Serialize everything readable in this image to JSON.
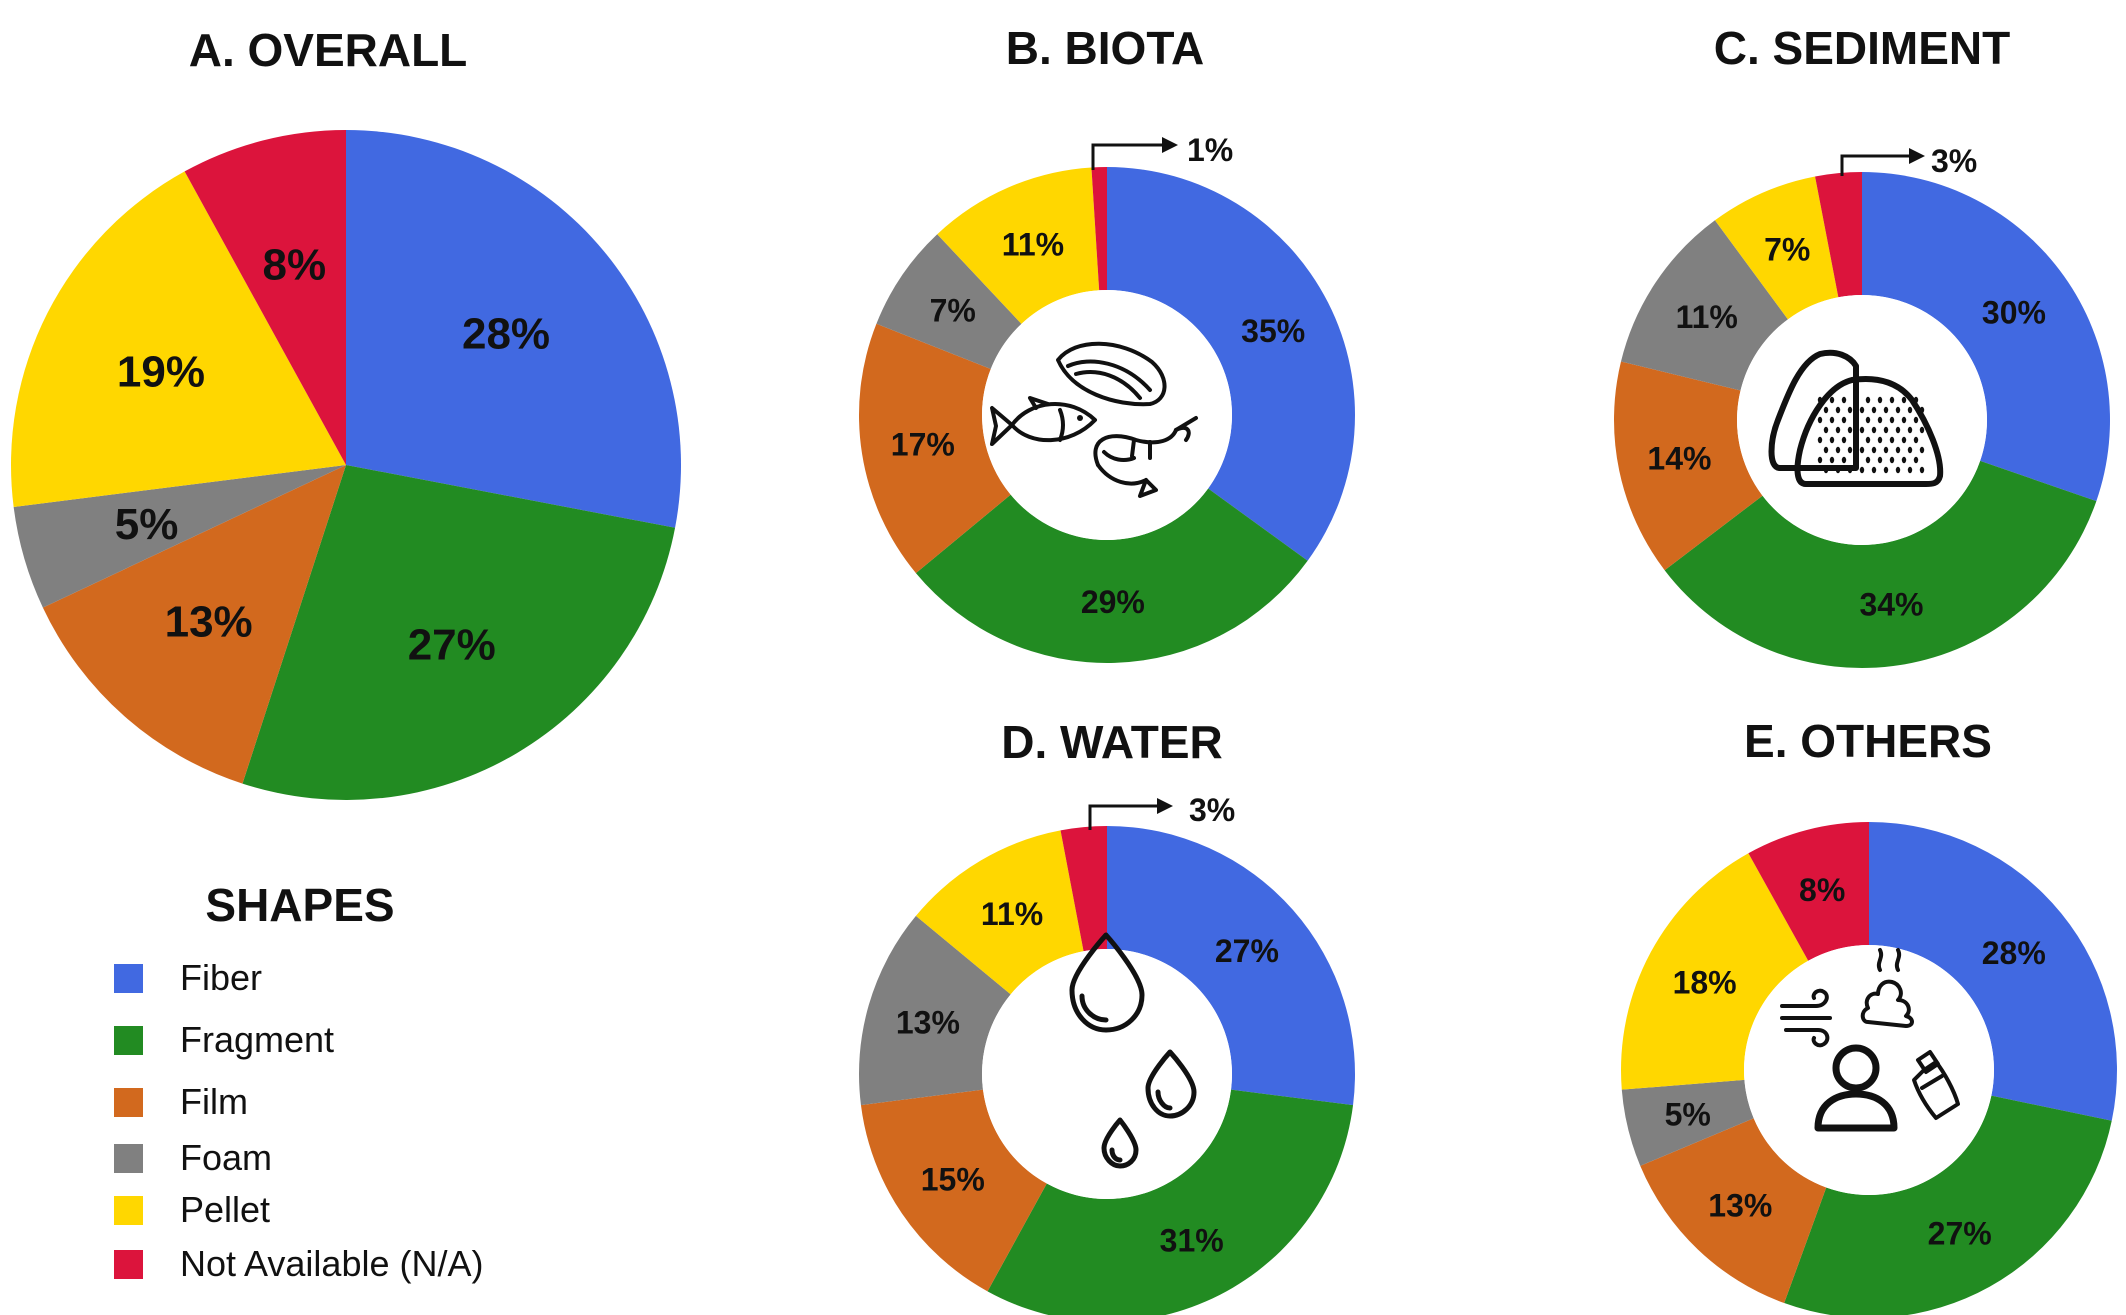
{
  "legend": {
    "title": "SHAPES",
    "items": [
      {
        "label": "Fiber",
        "color": "#4169E1"
      },
      {
        "label": "Fragment",
        "color": "#228B22"
      },
      {
        "label": "Film",
        "color": "#D2691E"
      },
      {
        "label": "Foam",
        "color": "#808080"
      },
      {
        "label": "Pellet",
        "color": "#FFD700"
      },
      {
        "label": "Not Available (N/A)",
        "color": "#DC143C"
      }
    ]
  },
  "chart_data": [
    {
      "type": "pie",
      "title": "A. OVERALL",
      "categories": [
        "Fiber",
        "Fragment",
        "Film",
        "Foam",
        "Pellet",
        "Not Available (N/A)"
      ],
      "values": [
        28,
        27,
        13,
        5,
        19,
        8
      ],
      "labels": [
        "28%",
        "27%",
        "13%",
        "5%",
        "19%",
        "8%"
      ]
    },
    {
      "type": "pie",
      "title": "B. BIOTA",
      "categories": [
        "Fiber",
        "Fragment",
        "Film",
        "Foam",
        "Pellet",
        "Not Available (N/A)"
      ],
      "values": [
        35,
        29,
        17,
        7,
        11,
        1
      ],
      "labels": [
        "35%",
        "29%",
        "17%",
        "7%",
        "11%",
        "1%"
      ],
      "icon": "marine-life-icon"
    },
    {
      "type": "pie",
      "title": "C. SEDIMENT",
      "categories": [
        "Fiber",
        "Fragment",
        "Film",
        "Foam",
        "Pellet",
        "Not Available (N/A)"
      ],
      "values": [
        30,
        34,
        14,
        11,
        7,
        3
      ],
      "labels": [
        "30%",
        "34%",
        "14%",
        "11%",
        "7%",
        "3%"
      ],
      "icon": "sediment-icon"
    },
    {
      "type": "pie",
      "title": "D. WATER",
      "categories": [
        "Fiber",
        "Fragment",
        "Film",
        "Foam",
        "Pellet",
        "Not Available (N/A)"
      ],
      "values": [
        27,
        31,
        15,
        13,
        11,
        3
      ],
      "labels": [
        "27%",
        "31%",
        "15%",
        "13%",
        "11%",
        "3%"
      ],
      "icon": "water-drops-icon"
    },
    {
      "type": "pie",
      "title": "E. OTHERS",
      "categories": [
        "Fiber",
        "Fragment",
        "Film",
        "Foam",
        "Pellet",
        "Not Available (N/A)"
      ],
      "values": [
        28,
        27,
        13,
        5,
        18,
        8
      ],
      "labels": [
        "28%",
        "27%",
        "13%",
        "5%",
        "18%",
        "8%"
      ],
      "icon": "other-sources-icon"
    }
  ]
}
